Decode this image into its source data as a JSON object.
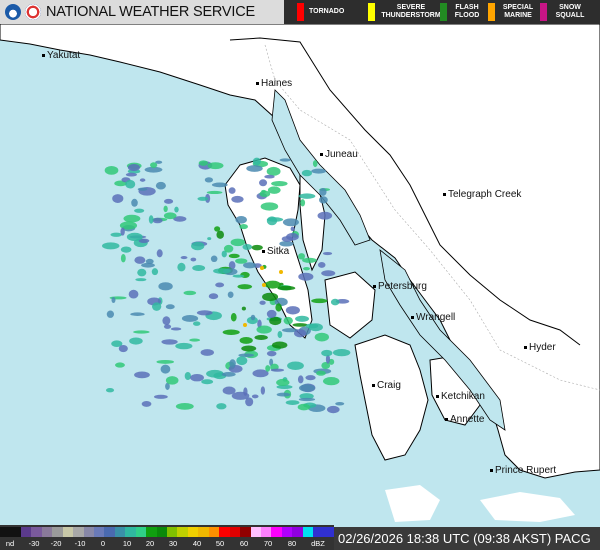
{
  "header": {
    "title": "NATIONAL WEATHER SERVICE",
    "logos": [
      "noaa-logo",
      "nws-logo"
    ],
    "warnings": [
      {
        "label": "TORNADO",
        "color": "#ff0000"
      },
      {
        "label": "SEVERE THUNDERSTORM",
        "color": "#ffff00"
      },
      {
        "label": "FLASH FLOOD",
        "color": "#228b22"
      },
      {
        "label": "SPECIAL MARINE",
        "color": "#ffa500"
      },
      {
        "label": "SNOW SQUALL",
        "color": "#c71585"
      }
    ]
  },
  "map": {
    "colors": {
      "water": "#bfe6ee",
      "land": "#ffffff",
      "coast": "#000000"
    },
    "cities": [
      {
        "name": "Yakutat"
      },
      {
        "name": "Haines"
      },
      {
        "name": "Juneau"
      },
      {
        "name": "Telegraph Creek"
      },
      {
        "name": "Sitka"
      },
      {
        "name": "Petersburg"
      },
      {
        "name": "Wrangell"
      },
      {
        "name": "Hyder"
      },
      {
        "name": "Craig"
      },
      {
        "name": "Ketchikan"
      },
      {
        "name": "Annette"
      },
      {
        "name": "Prince Rupert"
      }
    ]
  },
  "legend": {
    "labels": [
      "nd",
      "-30",
      "-20",
      "-10",
      "0",
      "10",
      "20",
      "30",
      "40",
      "50",
      "60",
      "70",
      "80",
      "dBZ"
    ],
    "colors": [
      "#111111",
      "#111111",
      "#5b3a8c",
      "#7a5a9c",
      "#8a7a9a",
      "#9a9a9a",
      "#c8c8a8",
      "#a8a8a8",
      "#8888a8",
      "#6a7ab8",
      "#4a6ab0",
      "#3a90a8",
      "#30b8a0",
      "#30d088",
      "#10a010",
      "#0a8a0a",
      "#80c000",
      "#c0d000",
      "#f0d000",
      "#f0b800",
      "#ff9000",
      "#ff0000",
      "#e00000",
      "#900000",
      "#ffc0ff",
      "#ff80ff",
      "#ff00ff",
      "#b000ff",
      "#9000e0",
      "#00e0f0",
      "#3030d0",
      "#3030d0"
    ]
  },
  "timestamp": "02/26/2026 18:38 UTC (09:38 AKST) PACG"
}
